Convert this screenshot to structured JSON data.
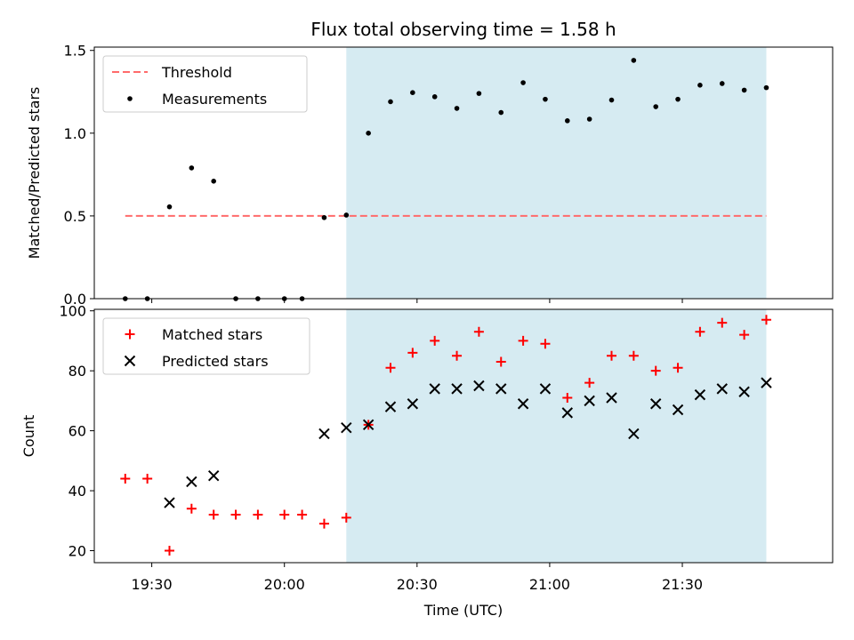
{
  "figure_title": "Flux total observing time = 1.58 h",
  "colors": {
    "shade": "#add8e6",
    "threshold": "#ff6b6b",
    "matched": "#ff0000",
    "predicted": "#000000",
    "measurement": "#000000"
  },
  "chart_data": [
    {
      "type": "scatter",
      "ylabel": "Matched/Predicted stars",
      "xlim": [
        "19:17",
        "22:04"
      ],
      "ylim": [
        0,
        1.52
      ],
      "yticks": [
        {
          "v": 0,
          "label": "0.0"
        },
        {
          "v": 0.5,
          "label": "0.5"
        },
        {
          "v": 1.0,
          "label": "1.0"
        },
        {
          "v": 1.5,
          "label": "1.5"
        }
      ],
      "xticks": [
        "19:30",
        "20:00",
        "20:30",
        "21:00",
        "21:30"
      ],
      "shaded_region": [
        "20:14",
        "21:49"
      ],
      "legend_position": "upper-left",
      "threshold": {
        "name": "Threshold",
        "value": 0.5,
        "x_range": [
          "19:24",
          "21:49"
        ]
      },
      "series": [
        {
          "name": "Measurements",
          "x": [
            "19:24",
            "19:29",
            "19:34",
            "19:39",
            "19:44",
            "19:49",
            "19:54",
            "20:00",
            "20:04",
            "20:09",
            "20:14",
            "20:19",
            "20:24",
            "20:29",
            "20:34",
            "20:39",
            "20:44",
            "20:49",
            "20:54",
            "20:59",
            "21:04",
            "21:09",
            "21:14",
            "21:19",
            "21:24",
            "21:29",
            "21:34",
            "21:39",
            "21:44",
            "21:49"
          ],
          "y": [
            0,
            0,
            0.555,
            0.79,
            0.71,
            0,
            0,
            0,
            0,
            0.49,
            0.505,
            1.0,
            1.19,
            1.245,
            1.22,
            1.15,
            1.24,
            1.125,
            1.305,
            1.205,
            1.075,
            1.085,
            1.2,
            1.44,
            1.16,
            1.205,
            1.29,
            1.3,
            1.26,
            1.275
          ]
        }
      ]
    },
    {
      "type": "scatter",
      "xlabel": "Time (UTC)",
      "ylabel": "Count",
      "xlim": [
        "19:17",
        "22:04"
      ],
      "ylim": [
        16,
        100.5
      ],
      "yticks": [
        {
          "v": 20,
          "label": "20"
        },
        {
          "v": 40,
          "label": "40"
        },
        {
          "v": 60,
          "label": "60"
        },
        {
          "v": 80,
          "label": "80"
        },
        {
          "v": 100,
          "label": "100"
        }
      ],
      "xticks": [
        "19:30",
        "20:00",
        "20:30",
        "21:00",
        "21:30"
      ],
      "shaded_region": [
        "20:14",
        "21:49"
      ],
      "legend_position": "upper-left",
      "series": [
        {
          "name": "Matched stars",
          "marker": "plus",
          "x": [
            "19:24",
            "19:29",
            "19:34",
            "19:39",
            "19:44",
            "19:49",
            "19:54",
            "20:00",
            "20:04",
            "20:09",
            "20:14",
            "20:19",
            "20:24",
            "20:29",
            "20:34",
            "20:39",
            "20:44",
            "20:49",
            "20:54",
            "20:59",
            "21:04",
            "21:09",
            "21:14",
            "21:19",
            "21:24",
            "21:29",
            "21:34",
            "21:39",
            "21:44",
            "21:49"
          ],
          "y": [
            44,
            44,
            20,
            34,
            32,
            32,
            32,
            32,
            32,
            29,
            31,
            62,
            81,
            86,
            90,
            85,
            93,
            83,
            90,
            89,
            71,
            76,
            85,
            85,
            80,
            81,
            93,
            96,
            92,
            97
          ]
        },
        {
          "name": "Predicted stars",
          "marker": "x",
          "x": [
            "19:34",
            "19:39",
            "19:44",
            "20:09",
            "20:14",
            "20:19",
            "20:24",
            "20:29",
            "20:34",
            "20:39",
            "20:44",
            "20:49",
            "20:54",
            "20:59",
            "21:04",
            "21:09",
            "21:14",
            "21:19",
            "21:24",
            "21:29",
            "21:34",
            "21:39",
            "21:44",
            "21:49"
          ],
          "y": [
            36,
            43,
            45,
            59,
            61,
            62,
            68,
            69,
            74,
            74,
            75,
            74,
            69,
            74,
            66,
            70,
            71,
            59,
            69,
            67,
            72,
            74,
            73,
            76
          ]
        }
      ]
    }
  ]
}
